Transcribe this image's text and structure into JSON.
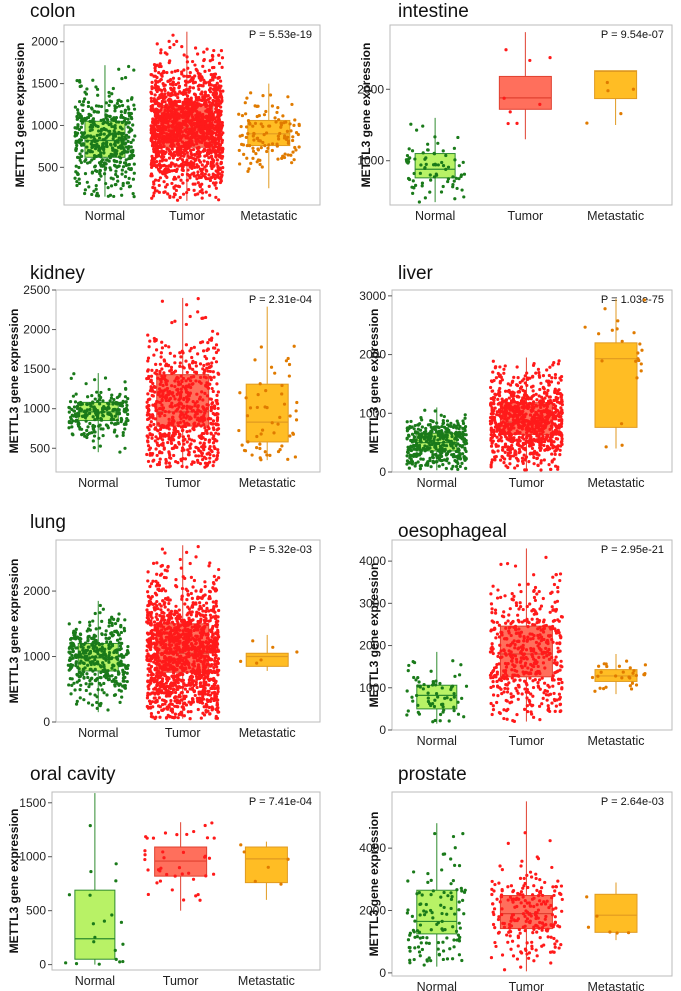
{
  "figure": {
    "type": "box-strip-panels",
    "ylabel": "METTL3 gene expression",
    "categories": [
      "Normal",
      "Tumor",
      "Metastatic"
    ],
    "colors": {
      "normal_box": "#b8f266",
      "normal_points": "#1a7a1a",
      "tumor_box": "#ff6f5c",
      "tumor_points": "#ff1a1a",
      "metastatic_box": "#ffbd24",
      "metastatic_points": "#e07b00",
      "box_edge_normal": "#2e8b2e",
      "box_edge_tumor": "#e04030",
      "box_edge_metastatic": "#e09a20",
      "frame": "#bbbbbb"
    }
  },
  "chart_data": [
    {
      "type": "box",
      "title": "colon",
      "pvalue": "P = 5.53e-19",
      "ylim": [
        50,
        2200
      ],
      "yticks": [
        "500",
        "1000",
        "1500",
        "2000"
      ],
      "ytick_values": [
        500,
        1000,
        1500,
        2000
      ],
      "boxes": [
        {
          "q1": 620,
          "median": 820,
          "q3": 1050,
          "whisker_low": 150,
          "whisker_high": 1720,
          "n": 480
        },
        {
          "q1": 740,
          "median": 970,
          "q3": 1240,
          "whisker_low": 100,
          "whisker_high": 2120,
          "n": 1600
        },
        {
          "q1": 760,
          "median": 900,
          "q3": 1060,
          "whisker_low": 250,
          "whisker_high": 1500,
          "n": 120
        }
      ]
    },
    {
      "type": "box",
      "title": "intestine",
      "pvalue": "P = 9.54e-07",
      "ylim": [
        380,
        2900
      ],
      "yticks": [
        "1000",
        "2000"
      ],
      "ytick_values": [
        1000,
        2000
      ],
      "boxes": [
        {
          "q1": 760,
          "median": 880,
          "q3": 1100,
          "whisker_low": 420,
          "whisker_high": 1600,
          "n": 80
        },
        {
          "q1": 1720,
          "median": 1880,
          "q3": 2180,
          "whisker_low": 1300,
          "whisker_high": 2800,
          "n": 8
        },
        {
          "q1": 1870,
          "median": 2250,
          "q3": 2260,
          "whisker_low": 1500,
          "whisker_high": 2260,
          "n": 5
        }
      ]
    },
    {
      "type": "box",
      "title": "kidney",
      "pvalue": "P = 2.31e-04",
      "ylim": [
        200,
        2500
      ],
      "yticks": [
        "500",
        "1000",
        "1500",
        "2000",
        "2500"
      ],
      "ytick_values": [
        500,
        1000,
        1500,
        2000,
        2500
      ],
      "boxes": [
        {
          "q1": 850,
          "median": 960,
          "q3": 1080,
          "whisker_low": 450,
          "whisker_high": 1450,
          "n": 240
        },
        {
          "q1": 780,
          "median": 960,
          "q3": 1430,
          "whisker_low": 250,
          "whisker_high": 2400,
          "n": 700
        },
        {
          "q1": 580,
          "median": 830,
          "q3": 1310,
          "whisker_low": 350,
          "whisker_high": 2290,
          "n": 55
        }
      ]
    },
    {
      "type": "box",
      "title": "liver",
      "pvalue": "P = 1.03e-75",
      "ylim": [
        0,
        3100
      ],
      "yticks": [
        "0",
        "1000",
        "2000",
        "3000"
      ],
      "ytick_values": [
        0,
        1000,
        2000,
        3000
      ],
      "boxes": [
        {
          "q1": 360,
          "median": 500,
          "q3": 660,
          "whisker_low": 30,
          "whisker_high": 1100,
          "n": 400
        },
        {
          "q1": 640,
          "median": 850,
          "q3": 1180,
          "whisker_low": 20,
          "whisker_high": 1950,
          "n": 900
        },
        {
          "q1": 760,
          "median": 1930,
          "q3": 2200,
          "whisker_low": 400,
          "whisker_high": 2950,
          "n": 22
        }
      ]
    },
    {
      "type": "box",
      "title": "lung",
      "pvalue": "P = 5.32e-03",
      "ylim": [
        0,
        2780
      ],
      "yticks": [
        "0",
        "1000",
        "2000"
      ],
      "ytick_values": [
        0,
        1000,
        2000
      ],
      "boxes": [
        {
          "q1": 780,
          "median": 980,
          "q3": 1200,
          "whisker_low": 150,
          "whisker_high": 1850,
          "n": 420
        },
        {
          "q1": 760,
          "median": 1050,
          "q3": 1500,
          "whisker_low": 50,
          "whisker_high": 2700,
          "n": 1400
        },
        {
          "q1": 850,
          "median": 1000,
          "q3": 1050,
          "whisker_low": 780,
          "whisker_high": 1330,
          "n": 6
        }
      ]
    },
    {
      "type": "box",
      "title": "oesophageal",
      "pvalue": "P = 2.95e-21",
      "ylim": [
        0,
        4500
      ],
      "yticks": [
        "0",
        "1000",
        "2000",
        "3000",
        "4000"
      ],
      "ytick_values": [
        0,
        1000,
        2000,
        3000,
        4000
      ],
      "boxes": [
        {
          "q1": 500,
          "median": 820,
          "q3": 1060,
          "whisker_low": 150,
          "whisker_high": 1850,
          "n": 70
        },
        {
          "q1": 1260,
          "median": 1800,
          "q3": 2460,
          "whisker_low": 200,
          "whisker_high": 4300,
          "n": 500
        },
        {
          "q1": 1150,
          "median": 1280,
          "q3": 1430,
          "whisker_low": 850,
          "whisker_high": 1800,
          "n": 30
        }
      ]
    },
    {
      "type": "box",
      "title": "oral cavity",
      "pvalue": "P = 7.41e-04",
      "ylim": [
        -50,
        1600
      ],
      "yticks": [
        "0",
        "500",
        "1000",
        "1500"
      ],
      "ytick_values": [
        0,
        500,
        1000,
        1500
      ],
      "boxes": [
        {
          "q1": 50,
          "median": 240,
          "q3": 690,
          "whisker_low": 0,
          "whisker_high": 1590,
          "n": 20
        },
        {
          "q1": 820,
          "median": 960,
          "q3": 1090,
          "whisker_low": 500,
          "whisker_high": 1320,
          "n": 40
        },
        {
          "q1": 760,
          "median": 980,
          "q3": 1090,
          "whisker_low": 600,
          "whisker_high": 1140,
          "n": 6
        }
      ]
    },
    {
      "type": "box",
      "title": "prostate",
      "pvalue": "P = 2.64e-03",
      "ylim": [
        -100,
        5800
      ],
      "yticks": [
        "0",
        "2000",
        "4000"
      ],
      "ytick_values": [
        0,
        2000,
        4000
      ],
      "boxes": [
        {
          "q1": 1250,
          "median": 1650,
          "q3": 2650,
          "whisker_low": 200,
          "whisker_high": 4800,
          "n": 120
        },
        {
          "q1": 1420,
          "median": 1900,
          "q3": 2480,
          "whisker_low": 50,
          "whisker_high": 5500,
          "n": 230
        },
        {
          "q1": 1300,
          "median": 1850,
          "q3": 2520,
          "whisker_low": 1050,
          "whisker_high": 2900,
          "n": 6
        }
      ]
    }
  ]
}
